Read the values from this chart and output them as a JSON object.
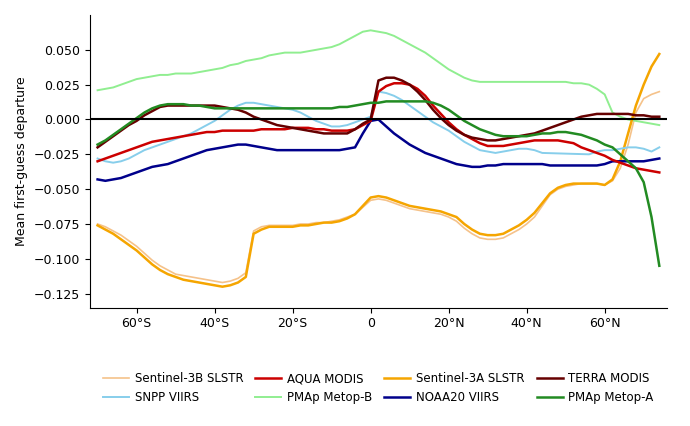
{
  "ylabel": "Mean first-guess departure",
  "xlim": [
    -72,
    76
  ],
  "ylim": [
    -0.135,
    0.075
  ],
  "yticks": [
    -0.125,
    -0.1,
    -0.075,
    -0.05,
    -0.025,
    0,
    0.025,
    0.05
  ],
  "xtick_lats": [
    -60,
    -40,
    -20,
    0,
    20,
    40,
    60
  ],
  "xtick_labels": [
    "60°S",
    "40°S",
    "20°S",
    "0",
    "20°N",
    "40°N",
    "60°N"
  ],
  "series": {
    "Sentinel-3B SLSTR": {
      "color": "#f5c28a",
      "lw": 1.2,
      "zorder": 2,
      "lat": [
        -70,
        -68,
        -66,
        -64,
        -62,
        -60,
        -58,
        -56,
        -54,
        -52,
        -50,
        -48,
        -46,
        -44,
        -42,
        -40,
        -38,
        -36,
        -34,
        -32,
        -30,
        -28,
        -26,
        -24,
        -22,
        -20,
        -18,
        -16,
        -14,
        -12,
        -10,
        -8,
        -6,
        -4,
        -2,
        0,
        2,
        4,
        6,
        8,
        10,
        12,
        14,
        16,
        18,
        20,
        22,
        24,
        26,
        28,
        30,
        32,
        34,
        36,
        38,
        40,
        42,
        44,
        46,
        48,
        50,
        52,
        54,
        56,
        58,
        60,
        62,
        64,
        66,
        68,
        70,
        72,
        74
      ],
      "val": [
        -0.075,
        -0.077,
        -0.08,
        -0.083,
        -0.087,
        -0.091,
        -0.096,
        -0.101,
        -0.105,
        -0.108,
        -0.111,
        -0.112,
        -0.113,
        -0.114,
        -0.115,
        -0.116,
        -0.117,
        -0.116,
        -0.114,
        -0.11,
        -0.08,
        -0.077,
        -0.076,
        -0.076,
        -0.076,
        -0.076,
        -0.075,
        -0.075,
        -0.074,
        -0.074,
        -0.073,
        -0.072,
        -0.07,
        -0.068,
        -0.063,
        -0.058,
        -0.057,
        -0.058,
        -0.06,
        -0.062,
        -0.064,
        -0.065,
        -0.066,
        -0.067,
        -0.068,
        -0.07,
        -0.073,
        -0.078,
        -0.082,
        -0.085,
        -0.086,
        -0.086,
        -0.085,
        -0.082,
        -0.079,
        -0.075,
        -0.07,
        -0.062,
        -0.054,
        -0.05,
        -0.048,
        -0.047,
        -0.046,
        -0.046,
        -0.046,
        -0.047,
        -0.044,
        -0.035,
        -0.018,
        0.005,
        0.015,
        0.018,
        0.02
      ]
    },
    "Sentinel-3A SLSTR": {
      "color": "#f5a500",
      "lw": 1.8,
      "zorder": 3,
      "lat": [
        -70,
        -68,
        -66,
        -64,
        -62,
        -60,
        -58,
        -56,
        -54,
        -52,
        -50,
        -48,
        -46,
        -44,
        -42,
        -40,
        -38,
        -36,
        -34,
        -32,
        -30,
        -28,
        -26,
        -24,
        -22,
        -20,
        -18,
        -16,
        -14,
        -12,
        -10,
        -8,
        -6,
        -4,
        -2,
        0,
        2,
        4,
        6,
        8,
        10,
        12,
        14,
        16,
        18,
        20,
        22,
        24,
        26,
        28,
        30,
        32,
        34,
        36,
        38,
        40,
        42,
        44,
        46,
        48,
        50,
        52,
        54,
        56,
        58,
        60,
        62,
        64,
        66,
        68,
        70,
        72,
        74
      ],
      "val": [
        -0.076,
        -0.079,
        -0.082,
        -0.086,
        -0.09,
        -0.094,
        -0.099,
        -0.104,
        -0.108,
        -0.111,
        -0.113,
        -0.115,
        -0.116,
        -0.117,
        -0.118,
        -0.119,
        -0.12,
        -0.119,
        -0.117,
        -0.113,
        -0.082,
        -0.079,
        -0.077,
        -0.077,
        -0.077,
        -0.077,
        -0.076,
        -0.076,
        -0.075,
        -0.074,
        -0.074,
        -0.073,
        -0.071,
        -0.068,
        -0.062,
        -0.056,
        -0.055,
        -0.056,
        -0.058,
        -0.06,
        -0.062,
        -0.063,
        -0.064,
        -0.065,
        -0.066,
        -0.068,
        -0.07,
        -0.075,
        -0.079,
        -0.082,
        -0.083,
        -0.083,
        -0.082,
        -0.079,
        -0.076,
        -0.072,
        -0.067,
        -0.06,
        -0.053,
        -0.049,
        -0.047,
        -0.046,
        -0.046,
        -0.046,
        -0.046,
        -0.047,
        -0.043,
        -0.03,
        -0.01,
        0.01,
        0.025,
        0.038,
        0.047
      ]
    },
    "SNPP VIIRS": {
      "color": "#87ceeb",
      "lw": 1.4,
      "zorder": 4,
      "lat": [
        -70,
        -68,
        -66,
        -64,
        -62,
        -60,
        -58,
        -56,
        -54,
        -52,
        -50,
        -48,
        -46,
        -44,
        -42,
        -40,
        -38,
        -36,
        -34,
        -32,
        -30,
        -28,
        -26,
        -24,
        -22,
        -20,
        -18,
        -16,
        -14,
        -12,
        -10,
        -8,
        -6,
        -4,
        -2,
        0,
        2,
        4,
        6,
        8,
        10,
        12,
        14,
        16,
        18,
        20,
        22,
        24,
        26,
        28,
        30,
        32,
        34,
        36,
        38,
        40,
        42,
        44,
        56,
        58,
        60,
        62,
        64,
        66,
        68,
        70,
        72,
        74
      ],
      "val": [
        -0.028,
        -0.03,
        -0.031,
        -0.03,
        -0.028,
        -0.025,
        -0.022,
        -0.02,
        -0.018,
        -0.016,
        -0.014,
        -0.012,
        -0.01,
        -0.007,
        -0.004,
        -0.001,
        0.003,
        0.007,
        0.01,
        0.012,
        0.012,
        0.011,
        0.01,
        0.009,
        0.008,
        0.007,
        0.005,
        0.002,
        -0.001,
        -0.003,
        -0.005,
        -0.005,
        -0.004,
        -0.002,
        0.0,
        0.002,
        0.02,
        0.019,
        0.017,
        0.014,
        0.01,
        0.006,
        0.002,
        -0.002,
        -0.005,
        -0.008,
        -0.012,
        -0.016,
        -0.019,
        -0.022,
        -0.023,
        -0.024,
        -0.023,
        -0.022,
        -0.021,
        -0.021,
        -0.022,
        -0.024,
        -0.025,
        -0.023,
        -0.022,
        -0.022,
        -0.021,
        -0.02,
        -0.02,
        -0.021,
        -0.023,
        -0.02
      ]
    },
    "NOAA20 VIIRS": {
      "color": "#00008b",
      "lw": 1.8,
      "zorder": 5,
      "lat": [
        -70,
        -68,
        -66,
        -64,
        -62,
        -60,
        -58,
        -56,
        -54,
        -52,
        -50,
        -48,
        -46,
        -44,
        -42,
        -40,
        -38,
        -36,
        -34,
        -32,
        -30,
        -28,
        -26,
        -24,
        -22,
        -20,
        -18,
        -16,
        -14,
        -12,
        -10,
        -8,
        -6,
        -4,
        -2,
        0,
        2,
        4,
        6,
        8,
        10,
        12,
        14,
        16,
        18,
        20,
        22,
        24,
        26,
        28,
        30,
        32,
        34,
        36,
        38,
        40,
        42,
        44,
        46,
        48,
        50,
        52,
        54,
        56,
        58,
        60,
        62,
        64,
        66,
        68,
        70,
        72,
        74
      ],
      "val": [
        -0.043,
        -0.044,
        -0.043,
        -0.042,
        -0.04,
        -0.038,
        -0.036,
        -0.034,
        -0.033,
        -0.032,
        -0.03,
        -0.028,
        -0.026,
        -0.024,
        -0.022,
        -0.021,
        -0.02,
        -0.019,
        -0.018,
        -0.018,
        -0.019,
        -0.02,
        -0.021,
        -0.022,
        -0.022,
        -0.022,
        -0.022,
        -0.022,
        -0.022,
        -0.022,
        -0.022,
        -0.022,
        -0.021,
        -0.02,
        -0.01,
        -0.001,
        0.0,
        -0.005,
        -0.01,
        -0.014,
        -0.018,
        -0.021,
        -0.024,
        -0.026,
        -0.028,
        -0.03,
        -0.032,
        -0.033,
        -0.034,
        -0.034,
        -0.033,
        -0.033,
        -0.032,
        -0.032,
        -0.032,
        -0.032,
        -0.032,
        -0.032,
        -0.033,
        -0.033,
        -0.033,
        -0.033,
        -0.033,
        -0.033,
        -0.033,
        -0.032,
        -0.03,
        -0.03,
        -0.03,
        -0.03,
        -0.03,
        -0.029,
        -0.028
      ]
    },
    "AQUA MODIS": {
      "color": "#cc0000",
      "lw": 1.8,
      "zorder": 6,
      "lat": [
        -70,
        -68,
        -66,
        -64,
        -62,
        -60,
        -58,
        -56,
        -54,
        -52,
        -50,
        -48,
        -46,
        -44,
        -42,
        -40,
        -38,
        -36,
        -34,
        -32,
        -30,
        -28,
        -26,
        -24,
        -22,
        -20,
        -18,
        -16,
        -14,
        -12,
        -10,
        -8,
        -6,
        -4,
        -2,
        0,
        2,
        4,
        6,
        8,
        10,
        12,
        14,
        16,
        18,
        20,
        22,
        24,
        26,
        28,
        30,
        32,
        34,
        36,
        38,
        40,
        42,
        44,
        46,
        48,
        50,
        52,
        54,
        56,
        58,
        60,
        62,
        64,
        66,
        68,
        70,
        72,
        74
      ],
      "val": [
        -0.03,
        -0.028,
        -0.026,
        -0.024,
        -0.022,
        -0.02,
        -0.018,
        -0.016,
        -0.015,
        -0.014,
        -0.013,
        -0.012,
        -0.011,
        -0.01,
        -0.009,
        -0.009,
        -0.008,
        -0.008,
        -0.008,
        -0.008,
        -0.008,
        -0.007,
        -0.007,
        -0.007,
        -0.007,
        -0.006,
        -0.006,
        -0.006,
        -0.007,
        -0.007,
        -0.008,
        -0.008,
        -0.008,
        -0.007,
        -0.004,
        -0.001,
        0.02,
        0.024,
        0.026,
        0.026,
        0.025,
        0.022,
        0.017,
        0.01,
        0.004,
        -0.002,
        -0.007,
        -0.011,
        -0.014,
        -0.017,
        -0.019,
        -0.019,
        -0.019,
        -0.018,
        -0.017,
        -0.016,
        -0.015,
        -0.015,
        -0.015,
        -0.015,
        -0.016,
        -0.017,
        -0.02,
        -0.022,
        -0.024,
        -0.026,
        -0.029,
        -0.031,
        -0.033,
        -0.035,
        -0.036,
        -0.037,
        -0.038
      ]
    },
    "TERRA MODIS": {
      "color": "#660000",
      "lw": 1.8,
      "zorder": 7,
      "lat": [
        -70,
        -68,
        -66,
        -64,
        -62,
        -60,
        -58,
        -56,
        -54,
        -52,
        -50,
        -48,
        -46,
        -44,
        -42,
        -40,
        -38,
        -36,
        -34,
        -32,
        -30,
        -28,
        -26,
        -24,
        -22,
        -20,
        -18,
        -16,
        -14,
        -12,
        -10,
        -8,
        -6,
        -4,
        -2,
        0,
        2,
        4,
        6,
        8,
        10,
        12,
        14,
        16,
        18,
        20,
        22,
        24,
        26,
        28,
        30,
        32,
        34,
        36,
        38,
        40,
        42,
        44,
        46,
        48,
        50,
        52,
        54,
        56,
        58,
        60,
        62,
        64,
        66,
        68,
        70,
        72,
        74
      ],
      "val": [
        -0.02,
        -0.016,
        -0.012,
        -0.008,
        -0.004,
        -0.001,
        0.003,
        0.006,
        0.009,
        0.01,
        0.01,
        0.01,
        0.01,
        0.01,
        0.01,
        0.01,
        0.009,
        0.008,
        0.007,
        0.005,
        0.002,
        0.0,
        -0.002,
        -0.004,
        -0.005,
        -0.006,
        -0.007,
        -0.008,
        -0.009,
        -0.01,
        -0.01,
        -0.01,
        -0.01,
        -0.007,
        -0.003,
        0.0,
        0.028,
        0.03,
        0.03,
        0.028,
        0.025,
        0.02,
        0.014,
        0.007,
        0.001,
        -0.004,
        -0.008,
        -0.011,
        -0.013,
        -0.014,
        -0.015,
        -0.015,
        -0.014,
        -0.013,
        -0.012,
        -0.011,
        -0.01,
        -0.008,
        -0.006,
        -0.004,
        -0.002,
        0.0,
        0.002,
        0.003,
        0.004,
        0.004,
        0.004,
        0.004,
        0.004,
        0.003,
        0.003,
        0.002,
        0.002
      ]
    },
    "PMAp Metop-B": {
      "color": "#90ee90",
      "lw": 1.4,
      "zorder": 2,
      "lat": [
        -70,
        -68,
        -66,
        -64,
        -62,
        -60,
        -58,
        -56,
        -54,
        -52,
        -50,
        -48,
        -46,
        -44,
        -42,
        -40,
        -38,
        -36,
        -34,
        -32,
        -30,
        -28,
        -26,
        -24,
        -22,
        -20,
        -18,
        -16,
        -14,
        -12,
        -10,
        -8,
        -6,
        -4,
        -2,
        0,
        2,
        4,
        6,
        8,
        10,
        12,
        14,
        16,
        18,
        20,
        22,
        24,
        26,
        28,
        30,
        32,
        34,
        36,
        38,
        40,
        42,
        44,
        46,
        48,
        50,
        52,
        54,
        56,
        58,
        60,
        62,
        64,
        66,
        68,
        70,
        72,
        74
      ],
      "val": [
        0.021,
        0.022,
        0.023,
        0.025,
        0.027,
        0.029,
        0.03,
        0.031,
        0.032,
        0.032,
        0.033,
        0.033,
        0.033,
        0.034,
        0.035,
        0.036,
        0.037,
        0.039,
        0.04,
        0.042,
        0.043,
        0.044,
        0.046,
        0.047,
        0.048,
        0.048,
        0.048,
        0.049,
        0.05,
        0.051,
        0.052,
        0.054,
        0.057,
        0.06,
        0.063,
        0.064,
        0.063,
        0.062,
        0.06,
        0.057,
        0.054,
        0.051,
        0.048,
        0.044,
        0.04,
        0.036,
        0.033,
        0.03,
        0.028,
        0.027,
        0.027,
        0.027,
        0.027,
        0.027,
        0.027,
        0.027,
        0.027,
        0.027,
        0.027,
        0.027,
        0.027,
        0.026,
        0.026,
        0.025,
        0.022,
        0.018,
        0.005,
        0.002,
        0.0,
        -0.001,
        -0.002,
        -0.003,
        -0.004
      ]
    },
    "PMAp Metop-A": {
      "color": "#228b22",
      "lw": 1.8,
      "zorder": 8,
      "lat": [
        -70,
        -68,
        -66,
        -64,
        -62,
        -60,
        -58,
        -56,
        -54,
        -52,
        -50,
        -48,
        -46,
        -44,
        -42,
        -40,
        -38,
        -36,
        -34,
        -32,
        -30,
        -28,
        -26,
        -24,
        -22,
        -20,
        -18,
        -16,
        -14,
        -12,
        -10,
        -8,
        -6,
        -4,
        -2,
        0,
        2,
        4,
        6,
        8,
        10,
        12,
        14,
        16,
        18,
        20,
        22,
        24,
        26,
        28,
        30,
        32,
        34,
        36,
        38,
        40,
        42,
        44,
        46,
        48,
        50,
        52,
        54,
        56,
        58,
        60,
        62,
        64,
        66,
        68,
        70,
        72,
        74
      ],
      "val": [
        -0.018,
        -0.015,
        -0.011,
        -0.007,
        -0.003,
        0.001,
        0.005,
        0.008,
        0.01,
        0.011,
        0.011,
        0.011,
        0.01,
        0.01,
        0.009,
        0.008,
        0.008,
        0.008,
        0.008,
        0.008,
        0.008,
        0.008,
        0.008,
        0.008,
        0.008,
        0.008,
        0.008,
        0.008,
        0.008,
        0.008,
        0.008,
        0.009,
        0.009,
        0.01,
        0.011,
        0.012,
        0.012,
        0.013,
        0.013,
        0.013,
        0.013,
        0.013,
        0.013,
        0.012,
        0.01,
        0.007,
        0.003,
        -0.001,
        -0.004,
        -0.007,
        -0.009,
        -0.011,
        -0.012,
        -0.012,
        -0.012,
        -0.012,
        -0.011,
        -0.01,
        -0.01,
        -0.009,
        -0.009,
        -0.01,
        -0.011,
        -0.013,
        -0.015,
        -0.018,
        -0.02,
        -0.025,
        -0.03,
        -0.035,
        -0.045,
        -0.07,
        -0.105
      ]
    }
  },
  "legend": [
    {
      "label": "Sentinel-3B SLSTR",
      "color": "#f5c28a",
      "lw": 1.2
    },
    {
      "label": "SNPP VIIRS",
      "color": "#87ceeb",
      "lw": 1.4
    },
    {
      "label": "AQUA MODIS",
      "color": "#cc0000",
      "lw": 1.8
    },
    {
      "label": "PMAp Metop-B",
      "color": "#90ee90",
      "lw": 1.4
    },
    {
      "label": "Sentinel-3A SLSTR",
      "color": "#f5a500",
      "lw": 1.8
    },
    {
      "label": "NOAA20 VIIRS",
      "color": "#00008b",
      "lw": 1.8
    },
    {
      "label": "TERRA MODIS",
      "color": "#660000",
      "lw": 1.8
    },
    {
      "label": "PMAp Metop-A",
      "color": "#228b22",
      "lw": 1.8
    }
  ]
}
